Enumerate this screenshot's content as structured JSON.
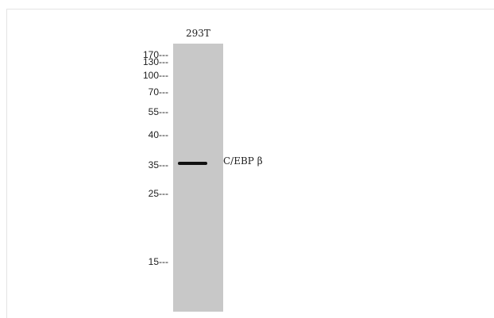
{
  "sample": {
    "lane_label": "293T"
  },
  "markers": {
    "m170": "170---",
    "m130": "130---",
    "m100": "100---",
    "m70": "70---",
    "m55": "55---",
    "m40": "40---",
    "m35": "35---",
    "m25": "25---",
    "m15": "15---"
  },
  "band": {
    "label": "C/EBP  β"
  },
  "colors": {
    "lane": "#c8c8c8",
    "band": "#111111",
    "background": "#ffffff"
  }
}
